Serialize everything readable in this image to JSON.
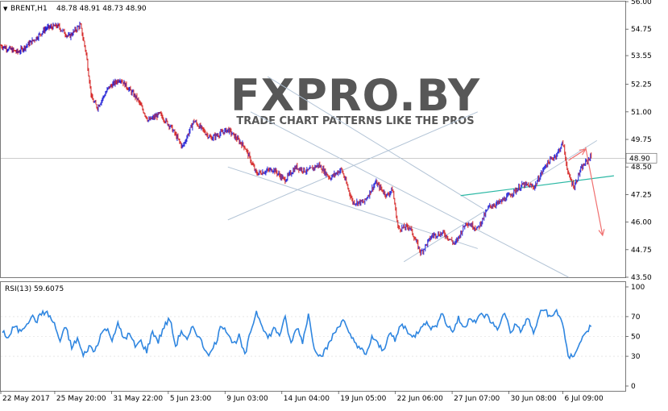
{
  "chart_data": [
    {
      "type": "candlestick",
      "symbol_label": "BRENT,H1",
      "ohlc_label": "48.78 48.91 48.73 48.90",
      "price_ticks": [
        "56.00",
        "54.75",
        "53.55",
        "52.25",
        "51.00",
        "49.75",
        "48.50",
        "47.25",
        "46.00",
        "44.75",
        "43.50"
      ],
      "price_values": [
        56.0,
        54.75,
        53.55,
        52.25,
        51.0,
        49.75,
        48.5,
        47.25,
        46.0,
        44.75,
        43.5
      ],
      "ylim": [
        43.5,
        56.0
      ],
      "last_price": "48.90",
      "x_ticks": [
        "22 May 2017",
        "25 May 20:00",
        "31 May 22:00",
        "5 Jun 23:00",
        "9 Jun 03:00",
        "14 Jun 04:00",
        "19 Jun 05:00",
        "22 Jun 06:00",
        "27 Jun 07:00",
        "30 Jun 08:00",
        "6 Jul 09:00"
      ],
      "price_path": [
        [
          0,
          54.0
        ],
        [
          3,
          53.7
        ],
        [
          6,
          54.3
        ],
        [
          8,
          54.8
        ],
        [
          10,
          54.9
        ],
        [
          12,
          54.4
        ],
        [
          14,
          54.95
        ],
        [
          15,
          53.7
        ],
        [
          16,
          51.6
        ],
        [
          17,
          51.2
        ],
        [
          19,
          52.1
        ],
        [
          21,
          52.5
        ],
        [
          24,
          51.6
        ],
        [
          26,
          50.6
        ],
        [
          28,
          50.9
        ],
        [
          30,
          50.3
        ],
        [
          32,
          49.4
        ],
        [
          34,
          50.6
        ],
        [
          37,
          49.8
        ],
        [
          40,
          50.2
        ],
        [
          43,
          49.4
        ],
        [
          45,
          48.2
        ],
        [
          48,
          48.4
        ],
        [
          50,
          47.9
        ],
        [
          52,
          48.5
        ],
        [
          54,
          48.3
        ],
        [
          56,
          48.6
        ],
        [
          58,
          48.0
        ],
        [
          60,
          48.4
        ],
        [
          62,
          46.9
        ],
        [
          64,
          46.9
        ],
        [
          66,
          47.8
        ],
        [
          68,
          47.2
        ],
        [
          69,
          47.5
        ],
        [
          70,
          45.7
        ],
        [
          72,
          45.8
        ],
        [
          74,
          44.6
        ],
        [
          76,
          45.4
        ],
        [
          78,
          45.5
        ],
        [
          80,
          45.0
        ],
        [
          82,
          46.0
        ],
        [
          84,
          45.7
        ],
        [
          86,
          46.7
        ],
        [
          88,
          46.9
        ],
        [
          90,
          47.3
        ],
        [
          92,
          47.7
        ],
        [
          94,
          47.6
        ],
        [
          96,
          48.6
        ],
        [
          98,
          49.1
        ],
        [
          99,
          49.6
        ],
        [
          100,
          48.1
        ],
        [
          101,
          47.6
        ],
        [
          102,
          48.3
        ],
        [
          103,
          48.7
        ],
        [
          104,
          49.0
        ]
      ],
      "channel_lines": [
        [
          [
            44,
            51.0
          ],
          [
            100,
            43.5
          ]
        ],
        [
          [
            47,
            52.6
          ],
          [
            85,
            46.6
          ]
        ],
        [
          [
            40,
            48.5
          ],
          [
            84,
            44.8
          ]
        ],
        [
          [
            40,
            46.1
          ],
          [
            84,
            51.0
          ]
        ],
        [
          [
            71,
            44.2
          ],
          [
            105,
            49.7
          ]
        ],
        [
          [
            81,
            47.2
          ],
          [
            108,
            48.1
          ]
        ]
      ],
      "forecast_arrows": [
        [
          [
            100,
            48.8
          ],
          [
            103,
            49.3
          ]
        ],
        [
          [
            103,
            49.4
          ],
          [
            106,
            45.4
          ]
        ]
      ]
    },
    {
      "type": "line",
      "label": "RSI(13) 59.6075",
      "ticks": [
        "100",
        "70",
        "50",
        "30",
        "0"
      ],
      "tick_values": [
        100,
        70,
        50,
        30,
        0
      ],
      "ylim": [
        0,
        100
      ],
      "values": [
        56,
        48,
        60,
        55,
        62,
        70,
        66,
        75,
        72,
        62,
        45,
        60,
        38,
        48,
        30,
        40,
        35,
        52,
        58,
        48,
        62,
        48,
        52,
        40,
        45,
        35,
        55,
        45,
        60,
        68,
        40,
        56,
        45,
        60,
        50,
        38,
        32,
        45,
        62,
        55,
        42,
        50,
        30,
        55,
        75,
        62,
        48,
        58,
        52,
        68,
        42,
        60,
        45,
        72,
        40,
        30,
        36,
        48,
        58,
        68,
        52,
        45,
        38,
        30,
        50,
        42,
        35,
        55,
        45,
        62,
        58,
        48,
        55,
        65,
        60,
        58,
        75,
        62,
        55,
        68,
        58,
        70,
        65,
        72,
        70,
        62,
        58,
        75,
        55,
        62,
        55,
        70,
        52,
        72,
        78,
        68,
        76,
        65,
        28,
        32,
        42,
        55,
        60
      ]
    }
  ],
  "watermark": {
    "title": "FXPRO.BY",
    "subtitle": "TRADE CHART PATTERNS LIKE THE PROS"
  },
  "colors": {
    "bull": "#1f1fd6",
    "bear": "#d42020",
    "channel": "#b3c4d6",
    "support": "#2bb8a4",
    "arrow": "#f07070",
    "rsi": "#2f86e0",
    "watermark": "#3a3a3a"
  }
}
